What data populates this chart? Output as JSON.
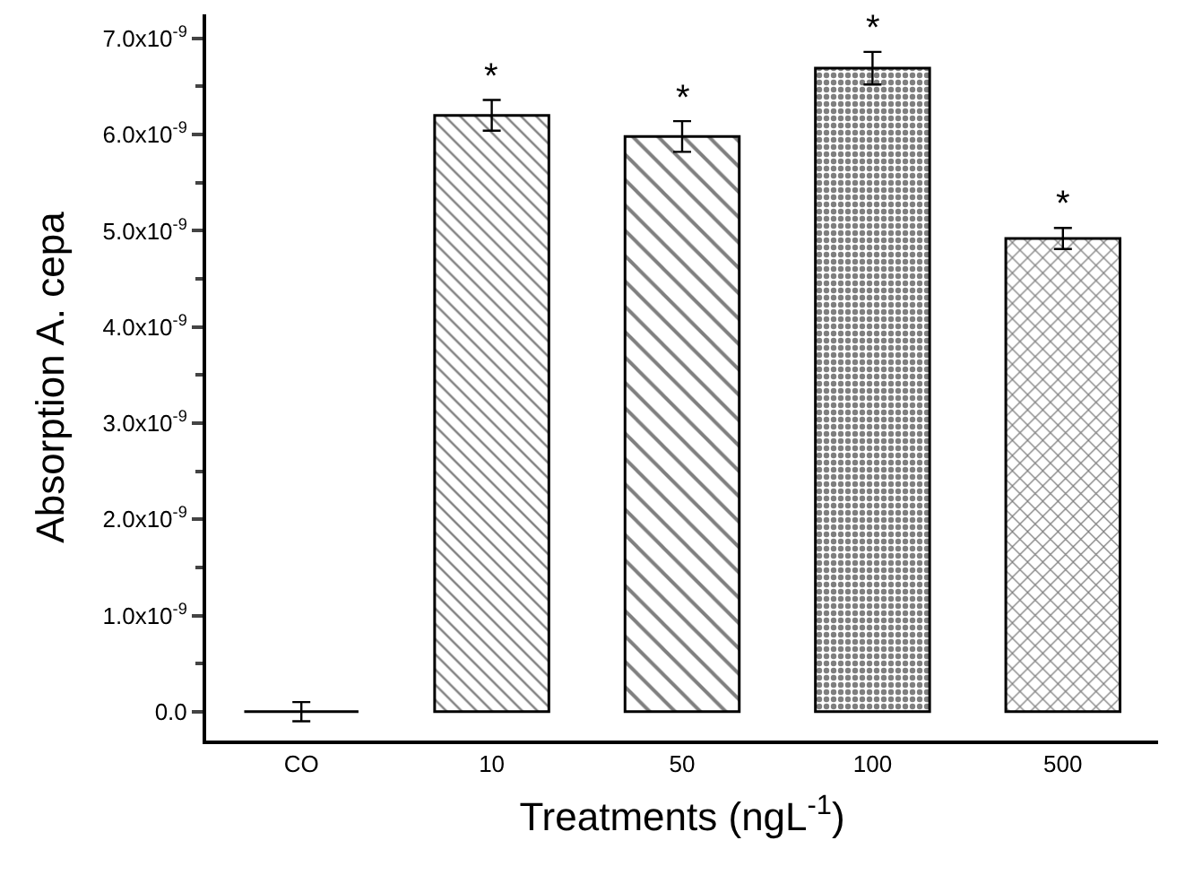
{
  "chart_data": {
    "type": "bar",
    "xlabel": "Treatments (ngL$^{-1}$)",
    "ylabel": "Absorption A. cepa",
    "categories": [
      "CO",
      "10",
      "50",
      "100",
      "500"
    ],
    "values": [
      0.0,
      6.2e-09,
      5.98e-09,
      6.69e-09,
      4.92e-09
    ],
    "errors": [
      1e-10,
      1.6e-10,
      1.6e-10,
      1.7e-10,
      1.1e-10
    ],
    "color": "#000000",
    "annotations": [
      {
        "text": "*",
        "x": "10",
        "y": 6.36e-09
      },
      {
        "text": "*",
        "x": "50",
        "y": 6.14e-09
      },
      {
        "text": "*",
        "x": "100",
        "y": 6.86e-09
      },
      {
        "text": "*",
        "x": "500",
        "y": 5.03e-09
      }
    ],
    "ylim": [
      -3e-10,
      7.25e-09
    ],
    "yticks": [
      {
        "value": 0,
        "label": "0.0"
      },
      {
        "value": 1e-09,
        "label": "1.0x10$^{-9}$"
      },
      {
        "value": 2e-09,
        "label": "2.0x10$^{-9}$"
      },
      {
        "value": 3e-09,
        "label": "3.0x10$^{-9}$"
      },
      {
        "value": 4e-09,
        "label": "4.0x10$^{-9}$"
      },
      {
        "value": 5e-09,
        "label": "5.0x10$^{-9}$"
      },
      {
        "value": 6e-09,
        "label": "6.0x10$^{-9}$"
      },
      {
        "value": 7e-09,
        "label": "7.0x10$^{-9}$"
      }
    ],
    "tick_labels": [
      "x",
      "y"
    ]
  }
}
